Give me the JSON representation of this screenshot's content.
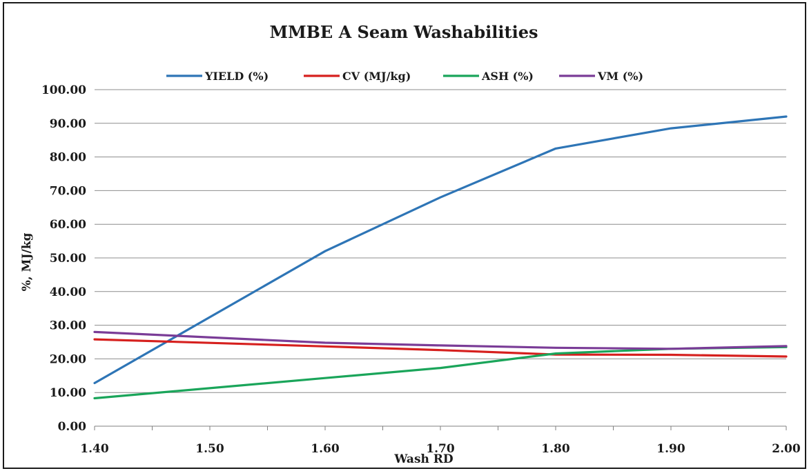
{
  "chart_data": {
    "type": "line",
    "title": "MMBE A Seam Washabilities",
    "xlabel": "Wash RD",
    "ylabel": "%, MJ/kg",
    "xlim": [
      1.4,
      2.0
    ],
    "ylim": [
      0,
      100
    ],
    "x_ticks": [
      "1.40",
      "1.50",
      "1.60",
      "1.70",
      "1.80",
      "1.90",
      "2.00"
    ],
    "y_ticks": [
      "0.00",
      "10.00",
      "20.00",
      "30.00",
      "40.00",
      "50.00",
      "60.00",
      "70.00",
      "80.00",
      "90.00",
      "100.00"
    ],
    "grid": "horizontal",
    "legend_position": "top",
    "x": [
      1.4,
      1.6,
      1.7,
      1.8,
      1.9,
      2.0
    ],
    "series": [
      {
        "name": "YIELD (%)",
        "color": "#2e75b6",
        "values": [
          12.8,
          52.0,
          68.0,
          82.5,
          88.5,
          92.0
        ]
      },
      {
        "name": "CV (MJ/kg)",
        "color": "#d6201e",
        "values": [
          25.8,
          23.7,
          22.6,
          21.3,
          21.2,
          20.7
        ]
      },
      {
        "name": "ASH (%)",
        "color": "#1aa55a",
        "values": [
          8.3,
          14.3,
          17.3,
          21.6,
          23.0,
          23.5
        ]
      },
      {
        "name": "VM (%)",
        "color": "#7a3c97",
        "values": [
          28.0,
          24.8,
          24.0,
          23.3,
          23.0,
          23.8
        ]
      }
    ]
  }
}
